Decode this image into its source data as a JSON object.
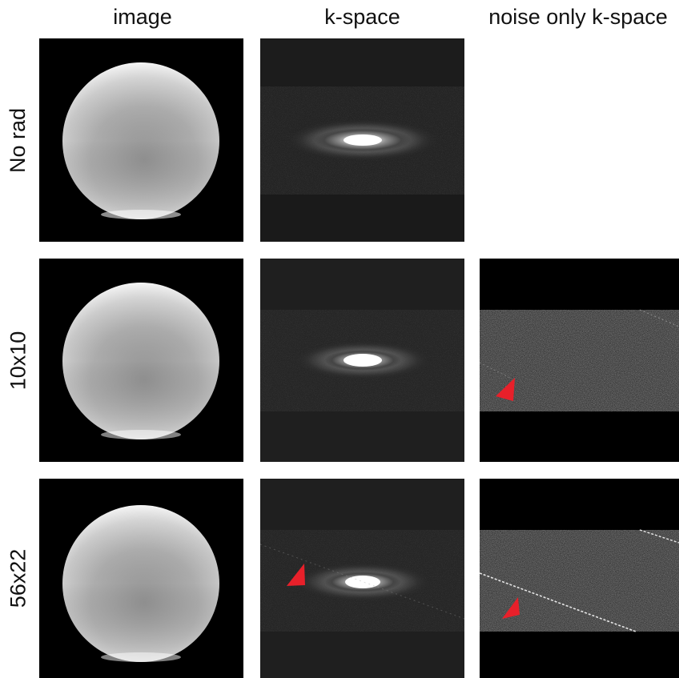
{
  "columns": {
    "image": "image",
    "kspace": "k-space",
    "noise": "noise only k-space"
  },
  "rows": [
    {
      "label": "No rad"
    },
    {
      "label": "10x10"
    },
    {
      "label": "56x22"
    }
  ],
  "colors": {
    "background": "#ffffff",
    "panel_background": "#000000",
    "arrow": "#e8202a"
  },
  "markers": {
    "arrow_icon": "red-arrowhead-icon"
  }
}
